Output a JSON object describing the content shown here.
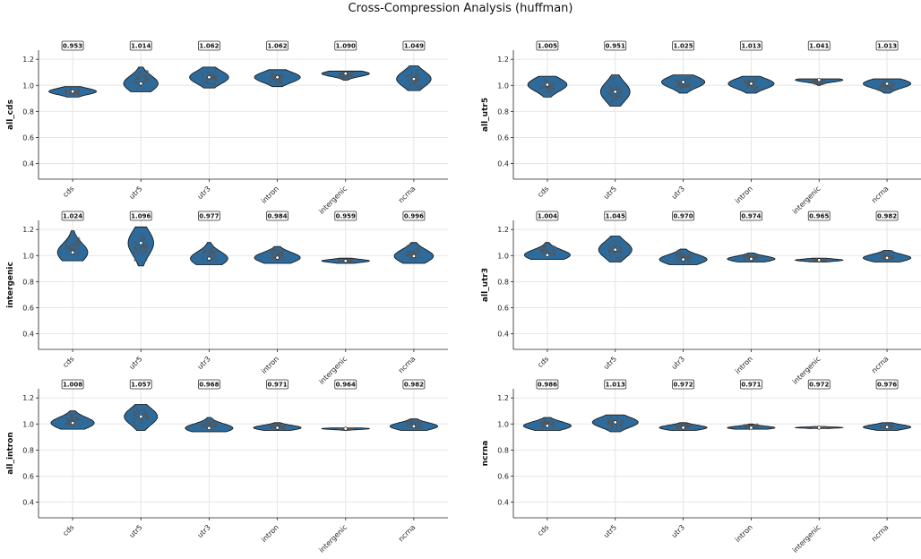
{
  "title": "Cross-Compression Analysis (huffman)",
  "colors": {
    "violin_fill": "#2e6a9a",
    "violin_edge": "#111111",
    "points": "#555555",
    "grid": "#e6e6e6"
  },
  "chart_data": [
    {
      "type": "violin",
      "ylabel": "all_cds",
      "categories": [
        "cds",
        "utr5",
        "utr3",
        "intron",
        "intergenic",
        "ncrna"
      ],
      "means": [
        0.953,
        1.014,
        1.062,
        1.062,
        1.09,
        1.049
      ],
      "ranges": [
        [
          0.91,
          0.99
        ],
        [
          0.95,
          1.14
        ],
        [
          0.98,
          1.14
        ],
        [
          0.99,
          1.12
        ],
        [
          1.04,
          1.11
        ],
        [
          0.96,
          1.15
        ]
      ],
      "ylim": [
        0.28,
        1.27
      ],
      "yticks": [
        0.4,
        0.6,
        0.8,
        1.0,
        1.2
      ],
      "grid": true
    },
    {
      "type": "violin",
      "ylabel": "all_utr5",
      "categories": [
        "cds",
        "utr5",
        "utr3",
        "intron",
        "intergenic",
        "ncrna"
      ],
      "means": [
        1.005,
        0.951,
        1.025,
        1.013,
        1.041,
        1.013
      ],
      "ranges": [
        [
          0.91,
          1.07
        ],
        [
          0.84,
          1.08
        ],
        [
          0.94,
          1.08
        ],
        [
          0.94,
          1.07
        ],
        [
          1.0,
          1.05
        ],
        [
          0.94,
          1.05
        ]
      ],
      "ylim": [
        0.28,
        1.27
      ],
      "yticks": [
        0.4,
        0.6,
        0.8,
        1.0,
        1.2
      ],
      "grid": true
    },
    {
      "type": "violin",
      "ylabel": "intergenic",
      "categories": [
        "cds",
        "utr5",
        "utr3",
        "intron",
        "intergenic",
        "ncrna"
      ],
      "means": [
        1.024,
        1.096,
        0.977,
        0.984,
        0.959,
        0.996
      ],
      "ranges": [
        [
          0.96,
          1.19
        ],
        [
          0.92,
          1.22
        ],
        [
          0.93,
          1.1
        ],
        [
          0.94,
          1.07
        ],
        [
          0.94,
          0.98
        ],
        [
          0.94,
          1.1
        ]
      ],
      "ylim": [
        0.28,
        1.27
      ],
      "yticks": [
        0.4,
        0.6,
        0.8,
        1.0,
        1.2
      ],
      "grid": true
    },
    {
      "type": "violin",
      "ylabel": "all_utr3",
      "categories": [
        "cds",
        "utr5",
        "utr3",
        "intron",
        "intergenic",
        "ncrna"
      ],
      "means": [
        1.004,
        1.045,
        0.97,
        0.974,
        0.965,
        0.982
      ],
      "ranges": [
        [
          0.97,
          1.1
        ],
        [
          0.95,
          1.15
        ],
        [
          0.93,
          1.05
        ],
        [
          0.95,
          1.02
        ],
        [
          0.95,
          0.98
        ],
        [
          0.95,
          1.04
        ]
      ],
      "ylim": [
        0.28,
        1.27
      ],
      "yticks": [
        0.4,
        0.6,
        0.8,
        1.0,
        1.2
      ],
      "grid": true
    },
    {
      "type": "violin",
      "ylabel": "all_intron",
      "categories": [
        "cds",
        "utr5",
        "utr3",
        "intron",
        "intergenic",
        "ncrna"
      ],
      "means": [
        1.008,
        1.057,
        0.968,
        0.971,
        0.964,
        0.982
      ],
      "ranges": [
        [
          0.96,
          1.1
        ],
        [
          0.95,
          1.15
        ],
        [
          0.94,
          1.05
        ],
        [
          0.95,
          1.01
        ],
        [
          0.95,
          0.97
        ],
        [
          0.95,
          1.04
        ]
      ],
      "ylim": [
        0.28,
        1.27
      ],
      "yticks": [
        0.4,
        0.6,
        0.8,
        1.0,
        1.2
      ],
      "grid": true
    },
    {
      "type": "violin",
      "ylabel": "ncrna",
      "categories": [
        "cds",
        "utr5",
        "utr3",
        "intron",
        "intergenic",
        "ncrna"
      ],
      "means": [
        0.986,
        1.013,
        0.972,
        0.971,
        0.972,
        0.976
      ],
      "ranges": [
        [
          0.95,
          1.05
        ],
        [
          0.94,
          1.07
        ],
        [
          0.95,
          1.01
        ],
        [
          0.96,
          1.0
        ],
        [
          0.965,
          0.98
        ],
        [
          0.95,
          1.01
        ]
      ],
      "ylim": [
        0.28,
        1.27
      ],
      "yticks": [
        0.4,
        0.6,
        0.8,
        1.0,
        1.2
      ],
      "grid": true
    }
  ]
}
